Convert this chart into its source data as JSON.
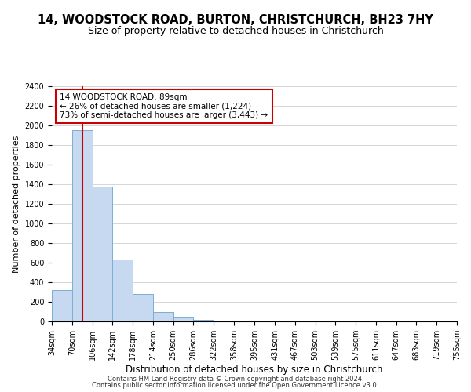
{
  "title": "14, WOODSTOCK ROAD, BURTON, CHRISTCHURCH, BH23 7HY",
  "subtitle": "Size of property relative to detached houses in Christchurch",
  "xlabel": "Distribution of detached houses by size in Christchurch",
  "ylabel": "Number of detached properties",
  "bar_edges": [
    34,
    70,
    106,
    142,
    178,
    214,
    250,
    286,
    322,
    358,
    395,
    431,
    467,
    503,
    539,
    575,
    611,
    647,
    683,
    719,
    755
  ],
  "bar_heights": [
    320,
    1950,
    1380,
    630,
    280,
    95,
    45,
    20,
    0,
    0,
    0,
    0,
    0,
    0,
    0,
    0,
    0,
    0,
    0,
    0
  ],
  "bar_color": "#c6d9f0",
  "bar_edgecolor": "#7bafd4",
  "property_line_x": 89,
  "property_line_color": "#cc0000",
  "ylim": [
    0,
    2400
  ],
  "yticks": [
    0,
    200,
    400,
    600,
    800,
    1000,
    1200,
    1400,
    1600,
    1800,
    2000,
    2200,
    2400
  ],
  "annotation_title": "14 WOODSTOCK ROAD: 89sqm",
  "annotation_line1": "← 26% of detached houses are smaller (1,224)",
  "annotation_line2": "73% of semi-detached houses are larger (3,443) →",
  "footer1": "Contains HM Land Registry data © Crown copyright and database right 2024.",
  "footer2": "Contains public sector information licensed under the Open Government Licence v3.0.",
  "title_fontsize": 10.5,
  "subtitle_fontsize": 9,
  "tick_label_fontsize": 7,
  "xlabel_fontsize": 8.5,
  "ylabel_fontsize": 8,
  "annotation_fontsize": 7.5,
  "footer_fontsize": 6
}
